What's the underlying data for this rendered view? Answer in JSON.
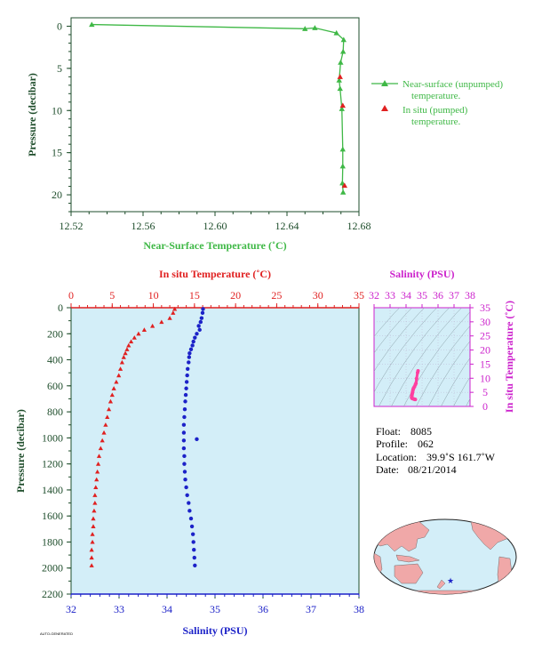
{
  "colors": {
    "green": "#3fb846",
    "red": "#e02020",
    "blue": "#1c22c8",
    "magenta": "#cc22cc",
    "axis_dark": "#1e4d2b",
    "plot_bg": "#d3eef8",
    "pink": "#ff3fa0"
  },
  "chart_data": [
    {
      "type": "line",
      "name": "near-surface",
      "xlabel": "Near-Surface Temperature (˚C)",
      "ylabel": "Pressure (decibar)",
      "xlim": [
        12.52,
        12.68
      ],
      "ylim": [
        22,
        -1
      ],
      "xticks": [
        "12.52",
        "12.56",
        "12.60",
        "12.64",
        "12.68"
      ],
      "yticks": [
        "0",
        "5",
        "10",
        "15",
        "20"
      ],
      "legend_position": "right",
      "legend": [
        {
          "label1": "Near-surface (unpumped)",
          "label2": "temperature."
        },
        {
          "label1": "In situ (pumped)",
          "label2": "temperature."
        }
      ],
      "series": [
        {
          "name": "Near-surface (unpumped) temperature.",
          "marker": "triangle",
          "color": "#3fb846",
          "line": true,
          "x": [
            12.5315,
            12.65,
            12.6555,
            12.6675,
            12.6715,
            12.6712,
            12.6698,
            12.669,
            12.6695,
            12.6705,
            12.671,
            12.671,
            12.6708,
            12.6712
          ],
          "y": [
            -0.2,
            0.3,
            0.2,
            0.8,
            1.6,
            3.0,
            4.3,
            6.4,
            7.4,
            9.8,
            14.6,
            16.6,
            18.6,
            19.7
          ]
        },
        {
          "name": "In situ (pumped) temperature.",
          "marker": "triangle",
          "color": "#e02020",
          "line": false,
          "x": [
            12.6695,
            12.671,
            12.672
          ],
          "y": [
            6.0,
            9.4,
            18.9
          ]
        }
      ]
    },
    {
      "type": "scatter",
      "name": "profile",
      "top_label": "In situ Temperature (˚C)",
      "bottom_label": "Salinity (PSU)",
      "ylabel": "Pressure (decibar)",
      "temp_lim": [
        0,
        35
      ],
      "sal_lim": [
        32,
        38
      ],
      "ylim": [
        2200,
        0
      ],
      "temp_ticks": [
        "0",
        "5",
        "10",
        "15",
        "20",
        "25",
        "30",
        "35"
      ],
      "sal_ticks": [
        "32",
        "33",
        "34",
        "35",
        "36",
        "37",
        "38"
      ],
      "pres_ticks": [
        "0",
        "200",
        "400",
        "600",
        "800",
        "1000",
        "1200",
        "1400",
        "1600",
        "1800",
        "2000",
        "2200"
      ],
      "temperature": {
        "color": "#e02020",
        "marker": "triangle",
        "pressure": [
          10,
          40,
          80,
          110,
          140,
          170,
          200,
          230,
          260,
          290,
          320,
          350,
          380,
          420,
          470,
          520,
          570,
          620,
          670,
          720,
          780,
          840,
          900,
          960,
          1020,
          1080,
          1140,
          1200,
          1260,
          1320,
          1380,
          1440,
          1500,
          1560,
          1620,
          1680,
          1740,
          1800,
          1860,
          1920,
          1980
        ],
        "values": [
          12.6,
          12.4,
          12.0,
          11.0,
          9.9,
          8.9,
          8.2,
          7.7,
          7.3,
          7.0,
          6.8,
          6.6,
          6.4,
          6.2,
          6.0,
          5.8,
          5.5,
          5.2,
          5.0,
          4.8,
          4.6,
          4.4,
          4.2,
          4.0,
          3.8,
          3.6,
          3.4,
          3.3,
          3.2,
          3.1,
          3.0,
          2.9,
          2.9,
          2.8,
          2.7,
          2.7,
          2.6,
          2.6,
          2.5,
          2.5,
          2.5
        ]
      },
      "salinity": {
        "color": "#1c22c8",
        "marker": "dot",
        "pressure": [
          10,
          40,
          80,
          110,
          140,
          170,
          200,
          230,
          260,
          290,
          320,
          350,
          380,
          420,
          470,
          520,
          570,
          620,
          670,
          720,
          780,
          840,
          900,
          960,
          1010,
          1020,
          1080,
          1140,
          1200,
          1260,
          1320,
          1380,
          1440,
          1500,
          1560,
          1620,
          1680,
          1740,
          1800,
          1860,
          1920,
          1980
        ],
        "values": [
          34.75,
          34.74,
          34.72,
          34.7,
          34.66,
          34.68,
          34.62,
          34.58,
          34.55,
          34.53,
          34.5,
          34.47,
          34.46,
          34.45,
          34.43,
          34.42,
          34.41,
          34.4,
          34.39,
          34.38,
          34.37,
          34.36,
          34.35,
          34.35,
          34.62,
          34.35,
          34.35,
          34.36,
          34.36,
          34.37,
          34.38,
          34.4,
          34.42,
          34.45,
          34.47,
          34.5,
          34.52,
          34.54,
          34.55,
          34.56,
          34.57,
          34.58
        ]
      }
    },
    {
      "type": "scatter",
      "name": "ts",
      "top_label": "Salinity (PSU)",
      "right_label": "In situ Temperature (˚C)",
      "sal_ticks": [
        "32",
        "33",
        "34",
        "35",
        "36",
        "37",
        "38"
      ],
      "temp_ticks": [
        "0",
        "5",
        "10",
        "15",
        "20",
        "25",
        "30",
        "35"
      ],
      "sal_lim": [
        32,
        38
      ],
      "temp_lim": [
        0,
        35
      ],
      "color": "#ff3fa0",
      "salinity": [
        34.75,
        34.72,
        34.66,
        34.62,
        34.58,
        34.53,
        34.48,
        34.45,
        34.43,
        34.41,
        34.4,
        34.38,
        34.37,
        34.36,
        34.35,
        34.35,
        34.37,
        34.4,
        34.45,
        34.5,
        34.55,
        34.58
      ],
      "temperature": [
        12.6,
        12.0,
        9.9,
        8.2,
        7.7,
        7.0,
        6.6,
        6.2,
        5.8,
        5.2,
        4.8,
        4.4,
        4.0,
        3.8,
        3.4,
        3.1,
        2.9,
        2.8,
        2.7,
        2.6,
        2.5,
        2.5
      ]
    }
  ],
  "info": {
    "float_label": "Float:",
    "float": "8085",
    "profile_label": "Profile:",
    "profile": "062",
    "location_label": "Location:",
    "location": "39.9˚S  161.7˚W",
    "date_label": "Date:",
    "date": "08/21/2014"
  },
  "map": {
    "land_color": "#f0a8a8",
    "ocean_color": "#d3eef8",
    "marker": "star",
    "marker_color": "#1c22c8"
  },
  "footer": "AUTO-GENERATED"
}
